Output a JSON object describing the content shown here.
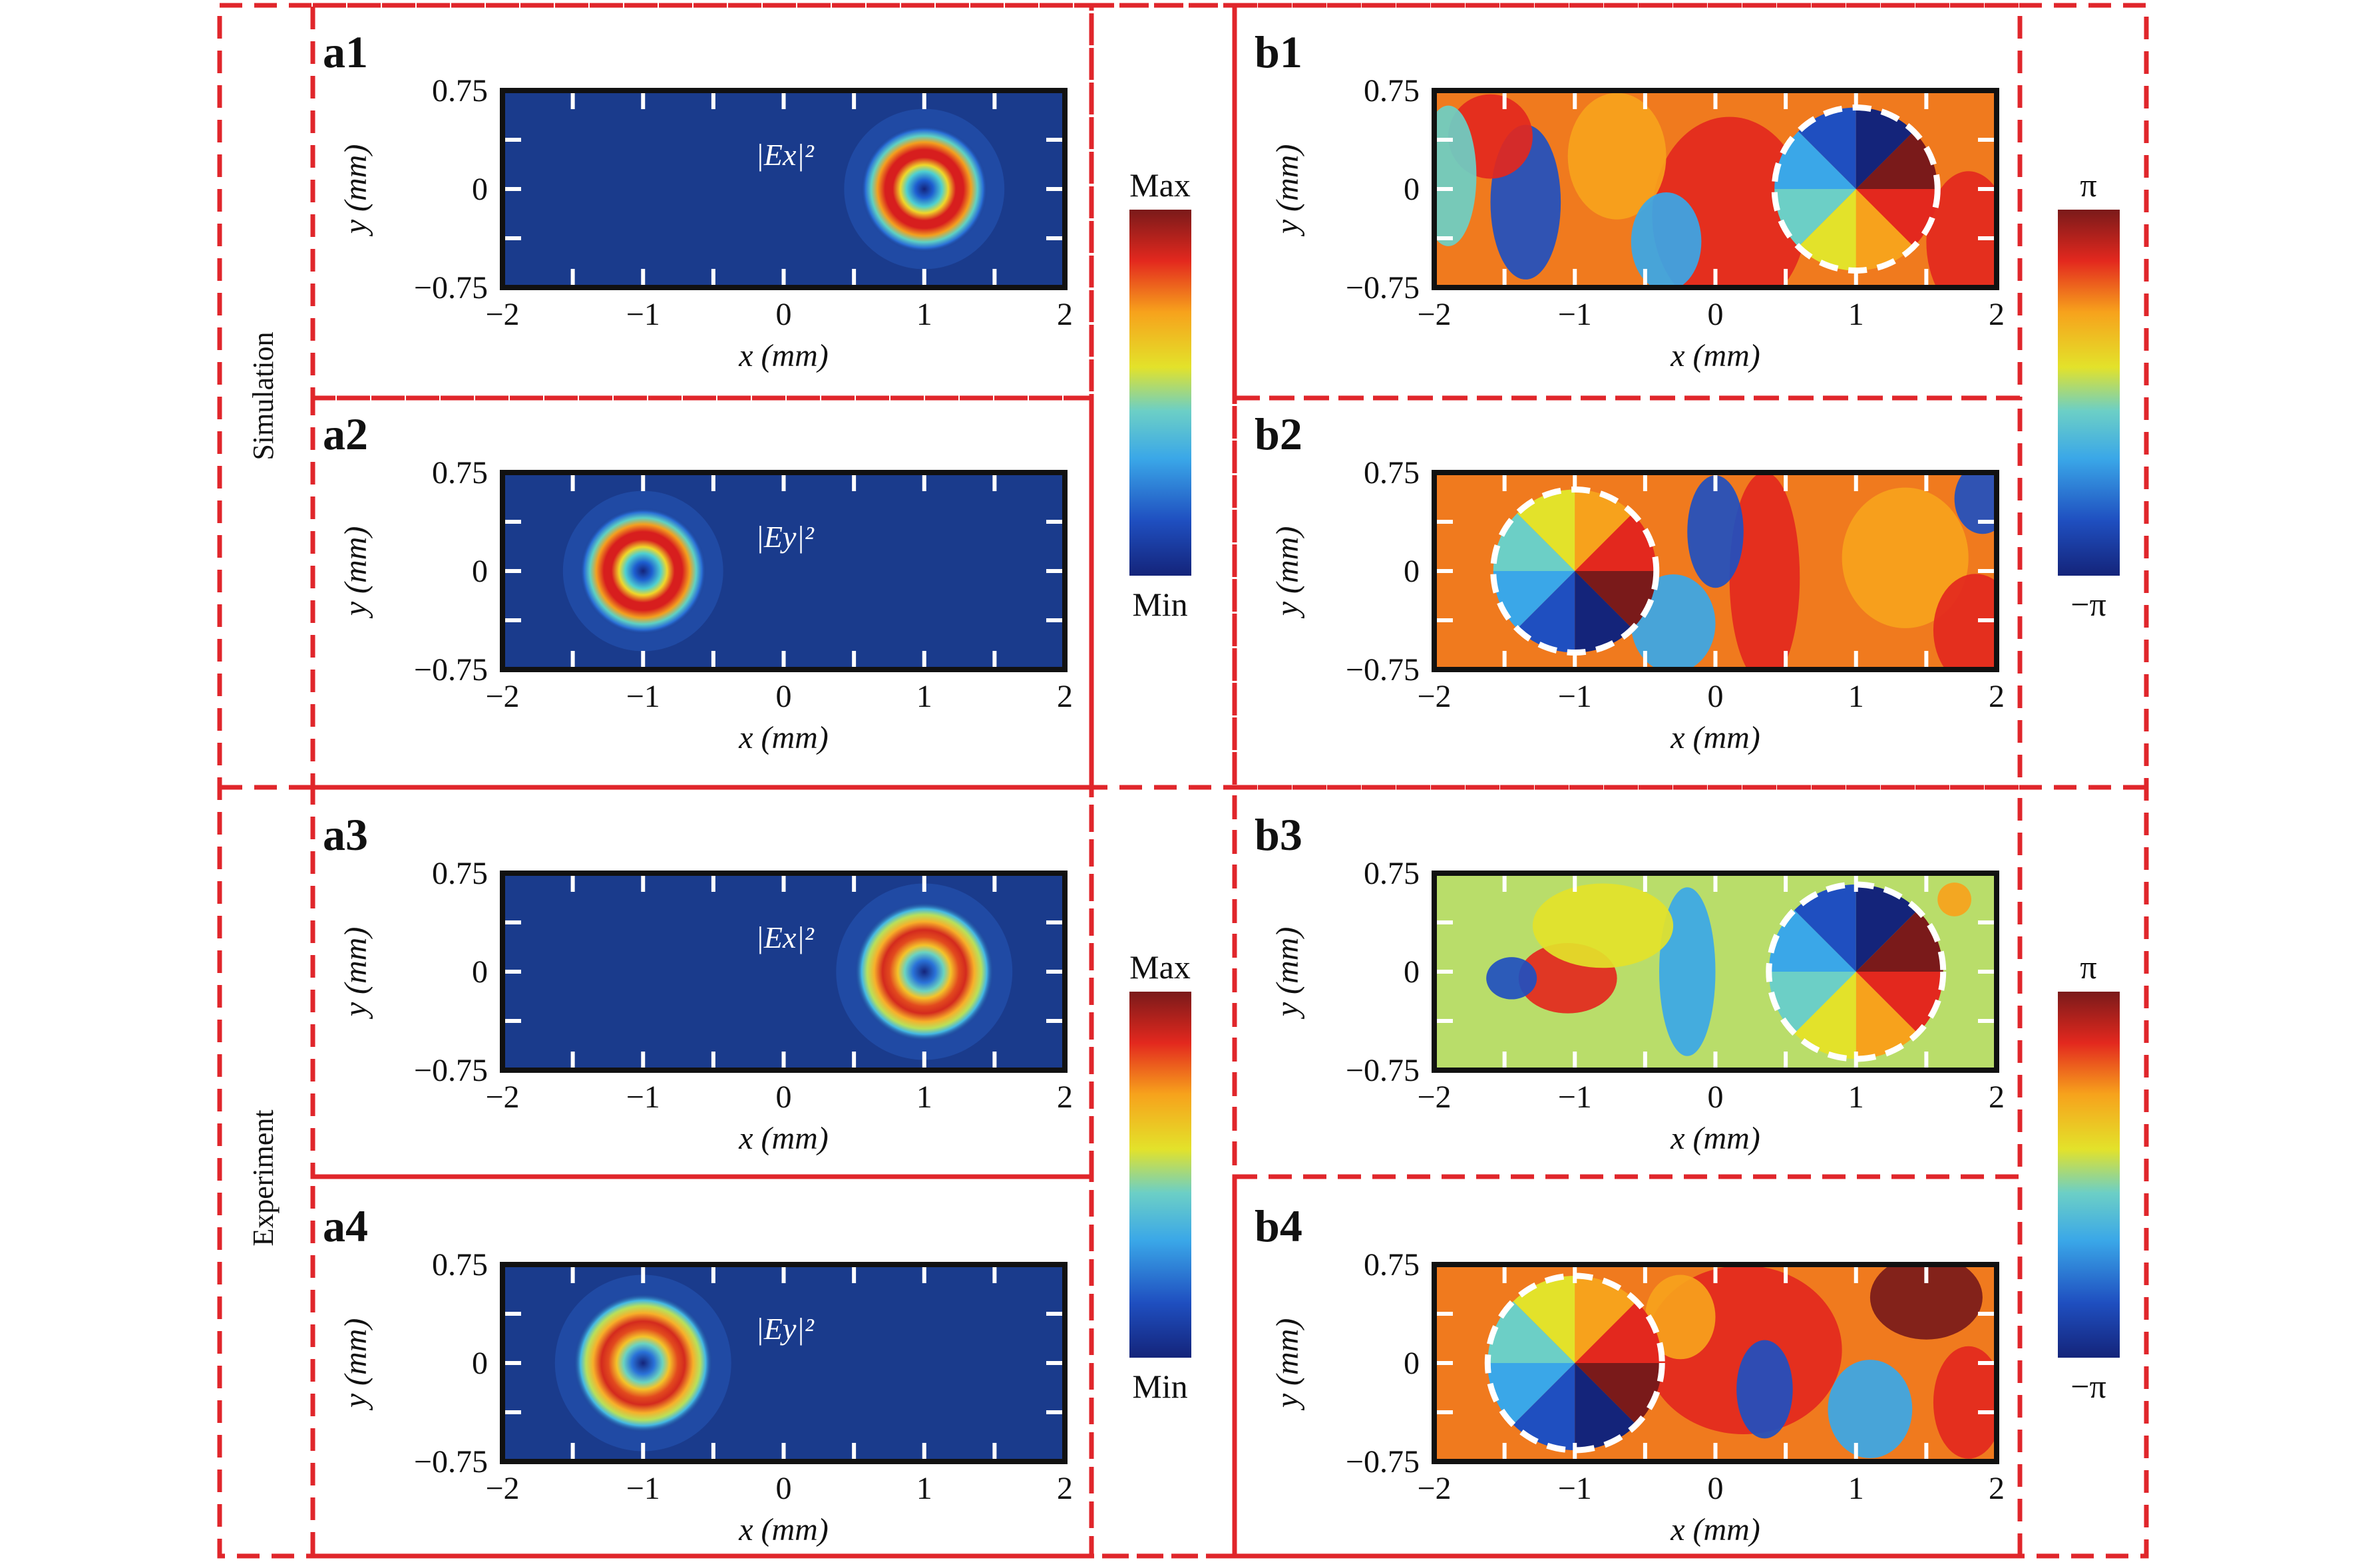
{
  "group_labels": {
    "simulation": "Simulation",
    "experiment": "Experiment"
  },
  "colorbars": {
    "intensity": {
      "max_label": "Max",
      "min_label": "Min"
    },
    "phase": {
      "max_label": "π",
      "min_label": "−π"
    }
  },
  "colors": {
    "dashed_frame": "#e0262b",
    "map_background": "#1a3b8c"
  },
  "chart_data": [
    {
      "id": "a1",
      "type": "heatmap",
      "quantity": "intensity",
      "field_label": "|Ex|²",
      "panel_label": "a1",
      "xlabel": "x (mm)",
      "ylabel": "y (mm)",
      "xlim": [
        -2,
        2
      ],
      "ylim": [
        -0.75,
        0.75
      ],
      "xticks": [
        "−2",
        "−1",
        "0",
        "1",
        "2"
      ],
      "yticks": [
        "0.75",
        "0",
        "−0.75"
      ],
      "donut_center": [
        1,
        0
      ],
      "donut_radius_mm": 0.3
    },
    {
      "id": "a2",
      "type": "heatmap",
      "quantity": "intensity",
      "field_label": "|Ey|²",
      "panel_label": "a2",
      "xlabel": "x (mm)",
      "ylabel": "y (mm)",
      "xlim": [
        -2,
        2
      ],
      "ylim": [
        -0.75,
        0.75
      ],
      "xticks": [
        "−2",
        "−1",
        "0",
        "1",
        "2"
      ],
      "yticks": [
        "0.75",
        "0",
        "−0.75"
      ],
      "donut_center": [
        -1,
        0
      ],
      "donut_radius_mm": 0.3
    },
    {
      "id": "a3",
      "type": "heatmap",
      "quantity": "intensity",
      "field_label": "|Ex|²",
      "panel_label": "a3",
      "xlabel": "x (mm)",
      "ylabel": "y (mm)",
      "xlim": [
        -2,
        2
      ],
      "ylim": [
        -0.75,
        0.75
      ],
      "xticks": [
        "−2",
        "−1",
        "0",
        "1",
        "2"
      ],
      "yticks": [
        "0.75",
        "0",
        "−0.75"
      ],
      "donut_center": [
        1,
        0
      ],
      "donut_radius_mm": 0.33
    },
    {
      "id": "a4",
      "type": "heatmap",
      "quantity": "intensity",
      "field_label": "|Ey|²",
      "panel_label": "a4",
      "xlabel": "x (mm)",
      "ylabel": "y (mm)",
      "xlim": [
        -2,
        2
      ],
      "ylim": [
        -0.75,
        0.75
      ],
      "xticks": [
        "−2",
        "−1",
        "0",
        "1",
        "2"
      ],
      "yticks": [
        "0.75",
        "0",
        "−0.75"
      ],
      "donut_center": [
        -1,
        0
      ],
      "donut_radius_mm": 0.33
    },
    {
      "id": "b1",
      "type": "heatmap",
      "quantity": "phase",
      "panel_label": "b1",
      "xlabel": "x (mm)",
      "ylabel": "y (mm)",
      "xlim": [
        -2,
        2
      ],
      "ylim": [
        -0.75,
        0.75
      ],
      "xticks": [
        "−2",
        "−1",
        "0",
        "1",
        "2"
      ],
      "yticks": [
        "0.75",
        "0",
        "−0.75"
      ],
      "vortex_center": [
        1,
        0
      ],
      "vortex_radius_mm": 0.58,
      "topological_charge": 1
    },
    {
      "id": "b2",
      "type": "heatmap",
      "quantity": "phase",
      "panel_label": "b2",
      "xlabel": "x (mm)",
      "ylabel": "y (mm)",
      "xlim": [
        -2,
        2
      ],
      "ylim": [
        -0.75,
        0.75
      ],
      "xticks": [
        "−2",
        "−1",
        "0",
        "1",
        "2"
      ],
      "yticks": [
        "0.75",
        "0",
        "−0.75"
      ],
      "vortex_center": [
        -1,
        0
      ],
      "vortex_radius_mm": 0.58,
      "topological_charge": -1
    },
    {
      "id": "b3",
      "type": "heatmap",
      "quantity": "phase",
      "panel_label": "b3",
      "xlabel": "x (mm)",
      "ylabel": "y (mm)",
      "xlim": [
        -2,
        2
      ],
      "ylim": [
        -0.75,
        0.75
      ],
      "xticks": [
        "−2",
        "−1",
        "0",
        "1",
        "2"
      ],
      "yticks": [
        "0.75",
        "0",
        "−0.75"
      ],
      "vortex_center": [
        1,
        0
      ],
      "vortex_radius_mm": 0.62,
      "topological_charge": 1
    },
    {
      "id": "b4",
      "type": "heatmap",
      "quantity": "phase",
      "panel_label": "b4",
      "xlabel": "x (mm)",
      "ylabel": "y (mm)",
      "xlim": [
        -2,
        2
      ],
      "ylim": [
        -0.75,
        0.75
      ],
      "xticks": [
        "−2",
        "−1",
        "0",
        "1",
        "2"
      ],
      "yticks": [
        "0.75",
        "0",
        "−0.75"
      ],
      "vortex_center": [
        -1,
        0
      ],
      "vortex_radius_mm": 0.62,
      "topological_charge": -1
    }
  ]
}
